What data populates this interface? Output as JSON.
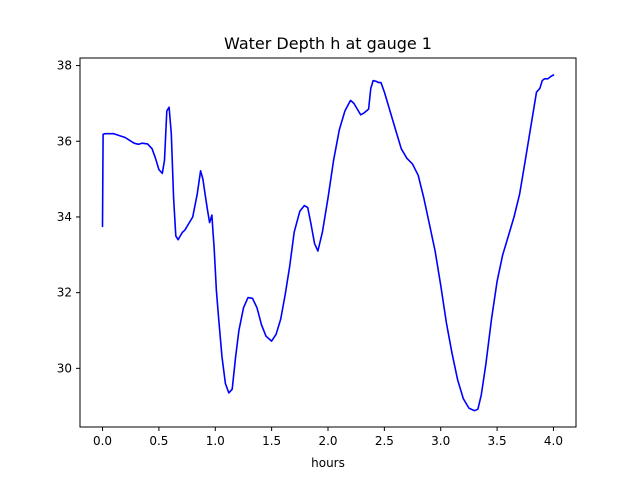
{
  "chart_data": {
    "type": "line",
    "title": "Water Depth h at gauge 1",
    "xlabel": "hours",
    "ylabel": "",
    "xlim": [
      -0.2,
      4.2
    ],
    "ylim": [
      28.45,
      38.2
    ],
    "xticks": [
      0.0,
      0.5,
      1.0,
      1.5,
      2.0,
      2.5,
      3.0,
      3.5,
      4.0
    ],
    "xtick_labels": [
      "0.0",
      "0.5",
      "1.0",
      "1.5",
      "2.0",
      "2.5",
      "3.0",
      "3.5",
      "4.0"
    ],
    "yticks": [
      30,
      32,
      34,
      36,
      38
    ],
    "ytick_labels": [
      "30",
      "32",
      "34",
      "36",
      "38"
    ],
    "grid": false,
    "series": [
      {
        "color": "#0000ff",
        "x": [
          0.0,
          0.005,
          0.02,
          0.1,
          0.2,
          0.28,
          0.32,
          0.35,
          0.4,
          0.44,
          0.47,
          0.5,
          0.53,
          0.55,
          0.57,
          0.59,
          0.61,
          0.63,
          0.65,
          0.67,
          0.69,
          0.71,
          0.73,
          0.76,
          0.8,
          0.84,
          0.87,
          0.89,
          0.91,
          0.93,
          0.95,
          0.97,
          0.98,
          0.99,
          1.0,
          1.01,
          1.03,
          1.06,
          1.09,
          1.12,
          1.15,
          1.18,
          1.21,
          1.25,
          1.29,
          1.33,
          1.37,
          1.41,
          1.45,
          1.5,
          1.54,
          1.58,
          1.62,
          1.66,
          1.7,
          1.75,
          1.79,
          1.82,
          1.85,
          1.88,
          1.91,
          1.95,
          2.0,
          2.05,
          2.1,
          2.15,
          2.2,
          2.23,
          2.26,
          2.29,
          2.32,
          2.36,
          2.38,
          2.39,
          2.4,
          2.41,
          2.43,
          2.45,
          2.47,
          2.5,
          2.55,
          2.6,
          2.65,
          2.7,
          2.75,
          2.8,
          2.85,
          2.9,
          2.95,
          3.0,
          3.05,
          3.1,
          3.15,
          3.2,
          3.25,
          3.3,
          3.33,
          3.36,
          3.4,
          3.45,
          3.5,
          3.55,
          3.6,
          3.65,
          3.7,
          3.75,
          3.8,
          3.85,
          3.88,
          3.9,
          3.92,
          3.95,
          3.98,
          4.0
        ],
        "y": [
          33.75,
          36.18,
          36.2,
          36.2,
          36.1,
          35.95,
          35.92,
          35.95,
          35.93,
          35.8,
          35.55,
          35.25,
          35.15,
          35.5,
          36.8,
          36.9,
          36.2,
          34.5,
          33.5,
          33.4,
          33.5,
          33.6,
          33.65,
          33.8,
          34.0,
          34.6,
          35.22,
          35.0,
          34.6,
          34.2,
          33.85,
          34.05,
          33.6,
          33.2,
          32.6,
          32.05,
          31.3,
          30.3,
          29.6,
          29.35,
          29.45,
          30.3,
          31.0,
          31.6,
          31.87,
          31.85,
          31.6,
          31.15,
          30.85,
          30.72,
          30.9,
          31.3,
          31.95,
          32.7,
          33.6,
          34.15,
          34.3,
          34.25,
          33.8,
          33.3,
          33.1,
          33.6,
          34.5,
          35.5,
          36.3,
          36.8,
          37.08,
          37.0,
          36.85,
          36.7,
          36.75,
          36.85,
          37.4,
          37.5,
          37.6,
          37.6,
          37.58,
          37.55,
          37.55,
          37.3,
          36.8,
          36.3,
          35.8,
          35.55,
          35.4,
          35.1,
          34.5,
          33.8,
          33.1,
          32.2,
          31.2,
          30.4,
          29.7,
          29.2,
          28.95,
          28.88,
          28.92,
          29.3,
          30.1,
          31.3,
          32.3,
          33.0,
          33.5,
          34.0,
          34.6,
          35.5,
          36.4,
          37.3,
          37.4,
          37.6,
          37.65,
          37.65,
          37.72,
          37.75
        ]
      }
    ]
  }
}
